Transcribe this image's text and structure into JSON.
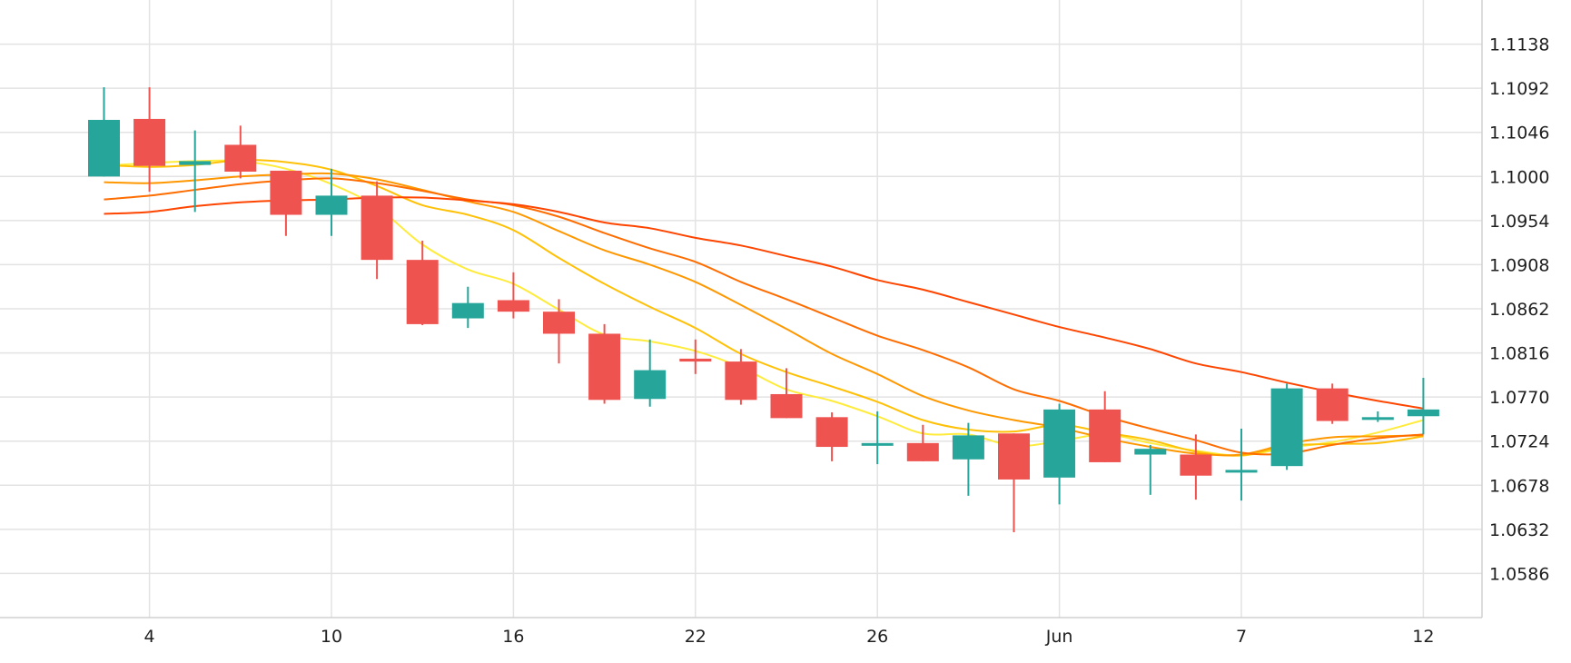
{
  "chart_data": {
    "type": "candlestick",
    "title": "",
    "xlabel": "",
    "ylabel": "",
    "ylim": [
      1.054,
      1.1184
    ],
    "grid": true,
    "colors": {
      "up": "#26a69a",
      "down": "#ef5350",
      "grid": "#e3e3e3",
      "axis": "#d0d0d0"
    },
    "y_ticks": [
      1.1138,
      1.1092,
      1.1046,
      1.1,
      1.0954,
      1.0908,
      1.0862,
      1.0816,
      1.077,
      1.0724,
      1.0678,
      1.0632,
      1.0586
    ],
    "y_tick_labels": [
      "1.1138",
      "1.1092",
      "1.1046",
      "1.1000",
      "1.0954",
      "1.0908",
      "1.0862",
      "1.0816",
      "1.0770",
      "1.0724",
      "1.0678",
      "1.0632",
      "1.0586"
    ],
    "x_ticks": [
      {
        "index": 1,
        "label": "4"
      },
      {
        "index": 5,
        "label": "10"
      },
      {
        "index": 9,
        "label": "16"
      },
      {
        "index": 13,
        "label": "22"
      },
      {
        "index": 17,
        "label": "26"
      },
      {
        "index": 21,
        "label": "Jun"
      },
      {
        "index": 25,
        "label": "7"
      },
      {
        "index": 29,
        "label": "12"
      }
    ],
    "candles": [
      {
        "o": 1.1,
        "h": 1.1093,
        "l": 1.1,
        "c": 1.1059
      },
      {
        "o": 1.106,
        "h": 1.1093,
        "l": 1.0984,
        "c": 1.1011
      },
      {
        "o": 1.1012,
        "h": 1.1048,
        "l": 1.0963,
        "c": 1.1016
      },
      {
        "o": 1.1033,
        "h": 1.1053,
        "l": 1.0998,
        "c": 1.1005
      },
      {
        "o": 1.1006,
        "h": 1.1006,
        "l": 1.0938,
        "c": 1.096
      },
      {
        "o": 1.096,
        "h": 1.1008,
        "l": 1.0938,
        "c": 1.098
      },
      {
        "o": 1.098,
        "h": 1.0995,
        "l": 1.0893,
        "c": 1.0913
      },
      {
        "o": 1.0913,
        "h": 1.0933,
        "l": 1.0845,
        "c": 1.0846
      },
      {
        "o": 1.0852,
        "h": 1.0885,
        "l": 1.0842,
        "c": 1.0868
      },
      {
        "o": 1.0871,
        "h": 1.09,
        "l": 1.0852,
        "c": 1.0859
      },
      {
        "o": 1.0859,
        "h": 1.0872,
        "l": 1.0805,
        "c": 1.0836
      },
      {
        "o": 1.0836,
        "h": 1.0846,
        "l": 1.0763,
        "c": 1.0767
      },
      {
        "o": 1.0768,
        "h": 1.083,
        "l": 1.076,
        "c": 1.0798
      },
      {
        "o": 1.081,
        "h": 1.083,
        "l": 1.0794,
        "c": 1.0807
      },
      {
        "o": 1.0807,
        "h": 1.082,
        "l": 1.0762,
        "c": 1.0767
      },
      {
        "o": 1.0773,
        "h": 1.08,
        "l": 1.0748,
        "c": 1.0748
      },
      {
        "o": 1.0749,
        "h": 1.0754,
        "l": 1.0703,
        "c": 1.0718
      },
      {
        "o": 1.072,
        "h": 1.0755,
        "l": 1.07,
        "c": 1.0722
      },
      {
        "o": 1.0722,
        "h": 1.0741,
        "l": 1.0703,
        "c": 1.0703
      },
      {
        "o": 1.0705,
        "h": 1.0743,
        "l": 1.0667,
        "c": 1.073
      },
      {
        "o": 1.0732,
        "h": 1.0732,
        "l": 1.0629,
        "c": 1.0684
      },
      {
        "o": 1.0686,
        "h": 1.0763,
        "l": 1.0658,
        "c": 1.0757
      },
      {
        "o": 1.0757,
        "h": 1.0776,
        "l": 1.0702,
        "c": 1.0702
      },
      {
        "o": 1.071,
        "h": 1.072,
        "l": 1.0668,
        "c": 1.0716
      },
      {
        "o": 1.071,
        "h": 1.0731,
        "l": 1.0663,
        "c": 1.0688
      },
      {
        "o": 1.0692,
        "h": 1.0737,
        "l": 1.0662,
        "c": 1.0694
      },
      {
        "o": 1.0698,
        "h": 1.0784,
        "l": 1.0694,
        "c": 1.0779
      },
      {
        "o": 1.0779,
        "h": 1.0784,
        "l": 1.0742,
        "c": 1.0745
      },
      {
        "o": 1.0747,
        "h": 1.0755,
        "l": 1.0744,
        "c": 1.0749
      },
      {
        "o": 1.075,
        "h": 1.079,
        "l": 1.0731,
        "c": 1.0757
      }
    ],
    "series": [
      {
        "color": "#ffeb3b",
        "values": [
          1.1011,
          1.1014,
          1.1016,
          1.1016,
          1.1008,
          1.0992,
          1.0968,
          1.0929,
          1.0903,
          1.0888,
          1.0861,
          1.0835,
          1.0828,
          1.0818,
          1.0801,
          1.0778,
          1.0766,
          1.075,
          1.0732,
          1.0731,
          1.0719,
          1.0724,
          1.0731,
          1.0722,
          1.0714,
          1.0709,
          1.0717,
          1.0723,
          1.0733,
          1.0746
        ]
      },
      {
        "color": "#ffc107",
        "values": [
          1.1012,
          1.101,
          1.1012,
          1.1017,
          1.1015,
          1.1007,
          1.099,
          1.097,
          1.096,
          1.0944,
          1.0915,
          1.0888,
          1.0864,
          1.0842,
          1.0815,
          1.0796,
          1.0781,
          1.0765,
          1.0746,
          1.0736,
          1.0734,
          1.0741,
          1.0733,
          1.0725,
          1.0713,
          1.0709,
          1.0719,
          1.0721,
          1.0722,
          1.0729
        ]
      },
      {
        "color": "#ff9800",
        "values": [
          1.0994,
          1.0993,
          1.0996,
          1.1,
          1.1002,
          1.1003,
          1.0997,
          1.0986,
          1.0974,
          1.0963,
          1.0943,
          1.0923,
          1.0908,
          1.089,
          1.0866,
          1.0841,
          1.0815,
          1.0794,
          1.0771,
          1.0756,
          1.0746,
          1.0738,
          1.0727,
          1.0718,
          1.0711,
          1.071,
          1.0721,
          1.0728,
          1.0729,
          1.073
        ]
      },
      {
        "color": "#ff6d00",
        "values": [
          1.0976,
          1.098,
          1.0986,
          1.0992,
          1.0996,
          1.0998,
          1.0993,
          1.0985,
          1.0976,
          1.097,
          1.0958,
          1.0941,
          1.0925,
          1.0911,
          1.089,
          1.0872,
          1.0853,
          1.0834,
          1.0819,
          1.0801,
          1.0778,
          1.0766,
          1.075,
          1.0737,
          1.0725,
          1.0712,
          1.0711,
          1.072,
          1.0727,
          1.0731
        ]
      },
      {
        "color": "#ff4500",
        "values": [
          1.0961,
          1.0963,
          1.0969,
          1.0973,
          1.0975,
          1.0976,
          1.0978,
          1.0978,
          1.0975,
          1.0971,
          1.0963,
          1.0952,
          1.0946,
          1.0936,
          1.0928,
          1.0917,
          1.0906,
          1.0892,
          1.0882,
          1.0869,
          1.0856,
          1.0843,
          1.0832,
          1.082,
          1.0805,
          1.0796,
          1.0785,
          1.0775,
          1.0766,
          1.0758
        ]
      }
    ]
  }
}
